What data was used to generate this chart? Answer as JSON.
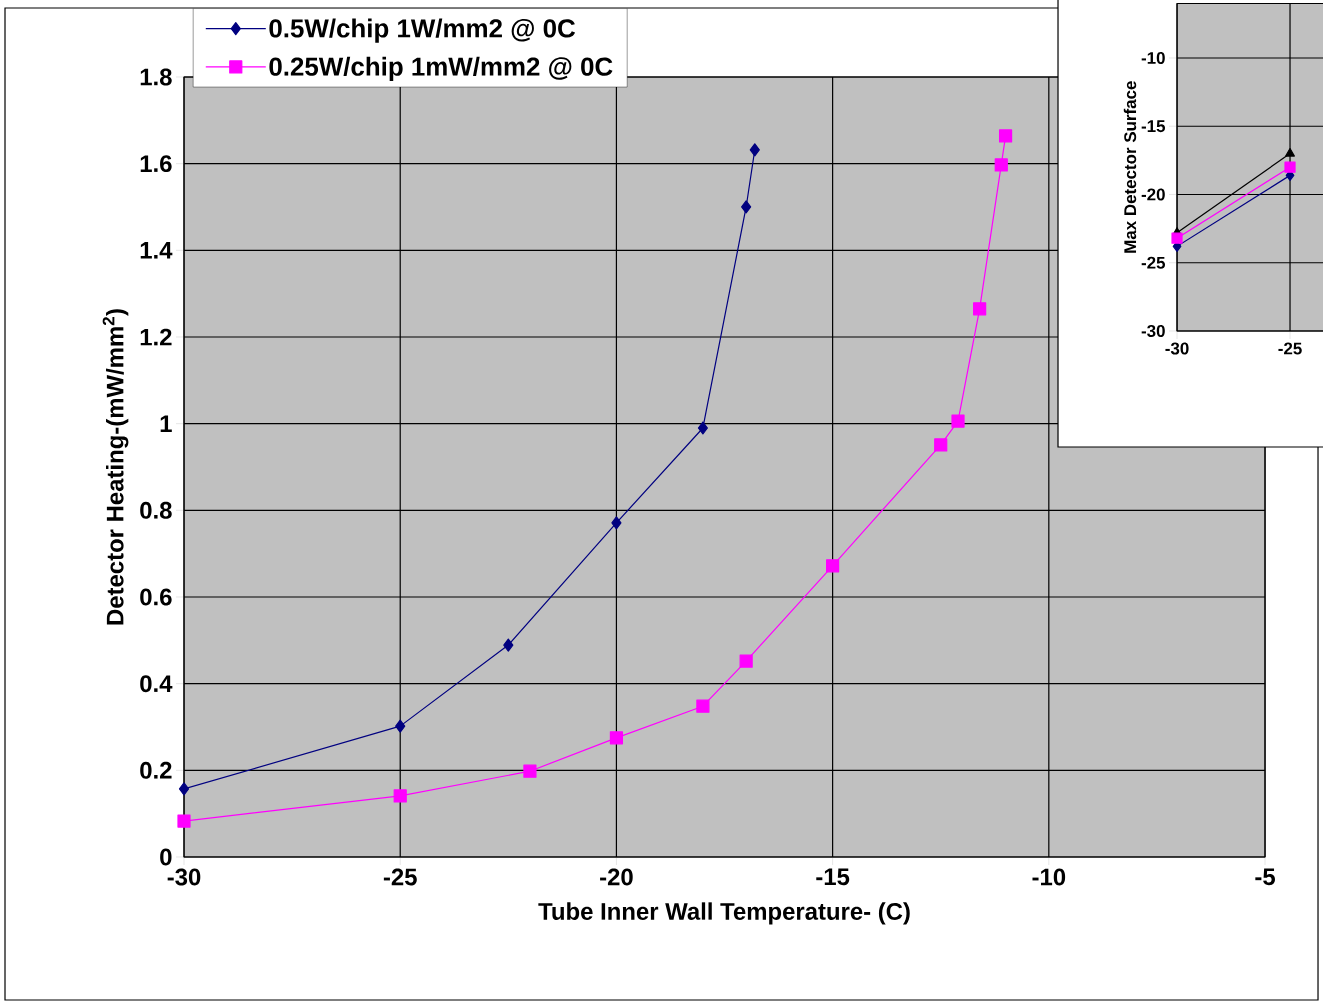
{
  "chart_data": [
    {
      "type": "line",
      "xlabel": "Tube Inner Wall Temperature- (C)",
      "ylabel": "Detector Heating-(mW/mm$^{2}$)",
      "xlim": [
        -30,
        -5
      ],
      "xticks": [
        -30,
        -25,
        -20,
        -15,
        -10,
        -5
      ],
      "ylim": [
        0,
        1.8
      ],
      "yticks": [
        0,
        0.2,
        0.4,
        0.6,
        0.8,
        1,
        1.2,
        1.4,
        1.6,
        1.8
      ],
      "grid": true,
      "legend": "top left",
      "series": [
        {
          "name": "0.5W/chip 1W/mm2 @ 0C",
          "color": "#000080",
          "marker": "diamond",
          "x": [
            -30,
            -25,
            -22.5,
            -20,
            -18,
            -17,
            -16.8
          ],
          "values": [
            0.157,
            0.302,
            0.489,
            0.771,
            0.99,
            1.5,
            1.632
          ]
        },
        {
          "name": "0.25W/chip 1mW/mm2 @ 0C",
          "color": "#ff00ff",
          "marker": "square",
          "x": [
            -30,
            -25,
            -22,
            -20,
            -18,
            -17,
            -15,
            -12.5,
            -12.1,
            -11.6,
            -11.1,
            -11
          ],
          "values": [
            0.083,
            0.141,
            0.198,
            0.275,
            0.348,
            0.452,
            0.672,
            0.951,
            1.006,
            1.265,
            1.597,
            1.664
          ]
        }
      ]
    },
    {
      "type": "line",
      "ylabel": "Max Detector Surface",
      "xlim": [
        -30,
        -23.5
      ],
      "xticks": [
        -30,
        -25
      ],
      "ylim": [
        -30,
        -6
      ],
      "yticks": [
        -30,
        -25,
        -20,
        -15,
        -10
      ],
      "grid": true,
      "series": [
        {
          "color": "#000000",
          "marker": "triangle",
          "x": [
            -30,
            -25
          ],
          "values": [
            -22.8,
            -17.0
          ]
        },
        {
          "color": "#000080",
          "marker": "diamond",
          "x": [
            -30,
            -25
          ],
          "values": [
            -23.8,
            -18.6
          ]
        },
        {
          "color": "#ff00ff",
          "marker": "square",
          "x": [
            -30,
            -25
          ],
          "values": [
            -23.2,
            -18.0
          ]
        }
      ]
    }
  ]
}
